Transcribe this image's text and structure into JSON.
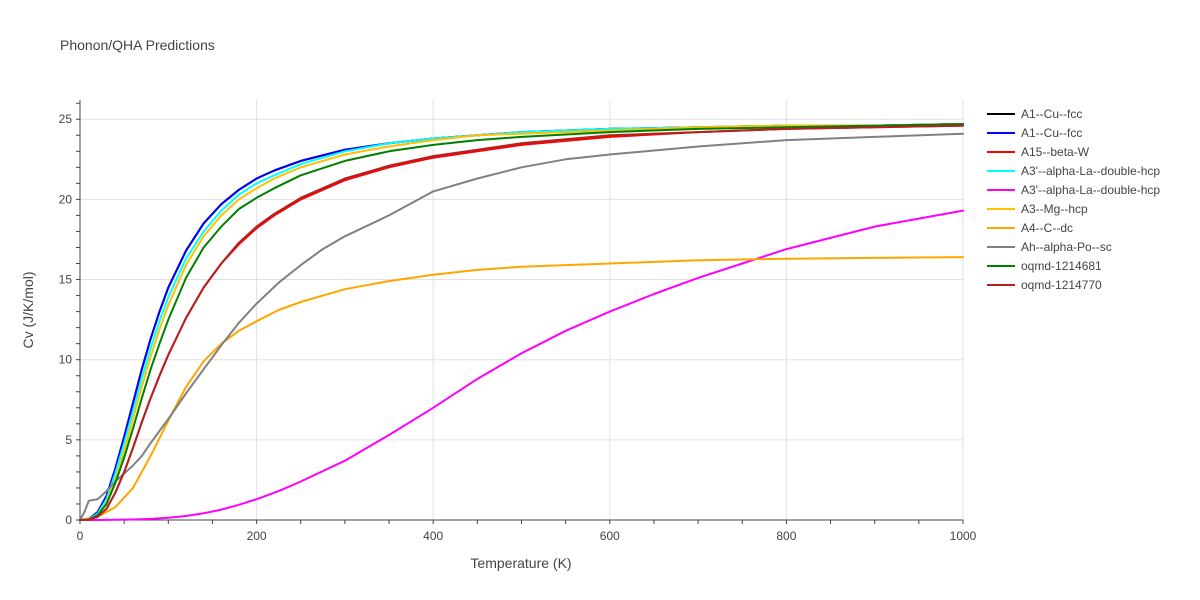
{
  "chart_data": {
    "type": "line",
    "title": "Phonon/QHA Predictions",
    "xlabel": "Temperature (K)",
    "ylabel": "Cv (J/K/mol)",
    "xlim": [
      0,
      1000
    ],
    "ylim": [
      0,
      26.2
    ],
    "xticks": [
      0,
      200,
      400,
      600,
      800,
      1000
    ],
    "yticks": [
      0,
      5,
      10,
      15,
      20,
      25
    ],
    "grid": true,
    "legend_position": "right",
    "series": [
      {
        "name": "A1--Cu--fcc",
        "color": "#000000",
        "x": [
          0,
          10,
          20,
          30,
          40,
          50,
          60,
          70,
          80,
          90,
          100,
          120,
          140,
          160,
          180,
          200,
          220,
          250,
          300,
          350,
          400,
          450,
          500,
          600,
          700,
          800,
          900,
          1000
        ],
        "y": [
          0,
          0.05,
          0.5,
          1.5,
          3.2,
          5.2,
          7.3,
          9.4,
          11.3,
          13.0,
          14.5,
          16.8,
          18.5,
          19.7,
          20.6,
          21.3,
          21.8,
          22.4,
          23.1,
          23.5,
          23.8,
          24.0,
          24.2,
          24.4,
          24.5,
          24.6,
          24.6,
          24.7
        ]
      },
      {
        "name": "A1--Cu--fcc",
        "color": "#0000ff",
        "x": [
          0,
          10,
          20,
          30,
          40,
          50,
          60,
          70,
          80,
          90,
          100,
          120,
          140,
          160,
          180,
          200,
          220,
          250,
          300,
          350,
          400,
          450,
          500,
          600,
          700,
          800,
          900,
          1000
        ],
        "y": [
          0,
          0.05,
          0.5,
          1.5,
          3.2,
          5.2,
          7.3,
          9.4,
          11.3,
          13.0,
          14.5,
          16.8,
          18.5,
          19.7,
          20.6,
          21.3,
          21.8,
          22.4,
          23.1,
          23.5,
          23.8,
          24.0,
          24.2,
          24.4,
          24.5,
          24.6,
          24.6,
          24.7
        ]
      },
      {
        "name": "A15--beta-W",
        "color": "#ff0000",
        "x": [
          0,
          10,
          20,
          30,
          40,
          50,
          60,
          70,
          80,
          90,
          100,
          120,
          140,
          160,
          180,
          200,
          220,
          250,
          300,
          350,
          400,
          450,
          500,
          600,
          700,
          800,
          900,
          1000
        ],
        "y": [
          0,
          0.02,
          0.2,
          0.7,
          1.7,
          3.0,
          4.5,
          6.1,
          7.6,
          9.0,
          10.3,
          12.6,
          14.5,
          16.0,
          17.2,
          18.2,
          19.0,
          20.0,
          21.2,
          22.0,
          22.6,
          23.0,
          23.4,
          23.9,
          24.2,
          24.4,
          24.5,
          24.6
        ]
      },
      {
        "name": "A3'--alpha-La--double-hcp",
        "color": "#00ffff",
        "x": [
          0,
          10,
          20,
          30,
          40,
          50,
          60,
          70,
          80,
          90,
          100,
          120,
          140,
          160,
          180,
          200,
          220,
          250,
          300,
          350,
          400,
          450,
          500,
          600,
          700,
          800,
          900,
          1000
        ],
        "y": [
          0,
          0.04,
          0.4,
          1.3,
          2.9,
          4.8,
          6.8,
          8.8,
          10.7,
          12.4,
          13.9,
          16.3,
          18.0,
          19.3,
          20.3,
          21.0,
          21.5,
          22.2,
          23.0,
          23.5,
          23.8,
          24.0,
          24.2,
          24.4,
          24.5,
          24.6,
          24.6,
          24.7
        ]
      },
      {
        "name": "A3'--alpha-La--double-hcp",
        "color": "#ff00ff",
        "x": [
          0,
          20,
          40,
          60,
          80,
          100,
          120,
          140,
          160,
          180,
          200,
          225,
          250,
          300,
          350,
          400,
          450,
          500,
          550,
          600,
          650,
          700,
          750,
          800,
          850,
          900,
          950,
          1000
        ],
        "y": [
          0,
          0,
          0.01,
          0.03,
          0.07,
          0.14,
          0.25,
          0.42,
          0.65,
          0.95,
          1.3,
          1.8,
          2.4,
          3.7,
          5.3,
          7.0,
          8.8,
          10.4,
          11.8,
          13.0,
          14.1,
          15.1,
          16.0,
          16.9,
          17.6,
          18.3,
          18.8,
          19.3
        ]
      },
      {
        "name": "A3--Mg--hcp",
        "color": "#ffc000",
        "x": [
          0,
          10,
          20,
          30,
          40,
          50,
          60,
          70,
          80,
          90,
          100,
          120,
          140,
          160,
          180,
          200,
          220,
          250,
          300,
          350,
          400,
          450,
          500,
          600,
          700,
          800,
          900,
          1000
        ],
        "y": [
          0,
          0.03,
          0.3,
          1.1,
          2.5,
          4.3,
          6.3,
          8.3,
          10.2,
          11.9,
          13.4,
          15.9,
          17.7,
          19.0,
          20.0,
          20.7,
          21.3,
          22.0,
          22.8,
          23.3,
          23.7,
          24.0,
          24.1,
          24.3,
          24.5,
          24.6,
          24.6,
          24.7
        ]
      },
      {
        "name": "A4--C--dc",
        "color": "#ffa500",
        "x": [
          0,
          20,
          40,
          60,
          80,
          100,
          120,
          140,
          160,
          180,
          200,
          225,
          250,
          275,
          300,
          350,
          400,
          450,
          500,
          600,
          700,
          800,
          900,
          1000
        ],
        "y": [
          0,
          0.2,
          0.8,
          2.0,
          4.0,
          6.2,
          8.3,
          9.9,
          11.0,
          11.8,
          12.4,
          13.1,
          13.6,
          14.0,
          14.4,
          14.9,
          15.3,
          15.6,
          15.8,
          16.0,
          16.2,
          16.3,
          16.35,
          16.4
        ]
      },
      {
        "name": "Ah--alpha-Po--sc",
        "color": "#808080",
        "x": [
          0,
          5,
          10,
          20,
          30,
          40,
          50,
          60,
          70,
          80,
          100,
          120,
          140,
          160,
          180,
          200,
          225,
          250,
          275,
          300,
          350,
          400,
          450,
          500,
          550,
          600,
          700,
          800,
          900,
          1000
        ],
        "y": [
          0,
          0.5,
          1.2,
          1.3,
          1.8,
          2.4,
          2.9,
          3.4,
          4.0,
          4.8,
          6.3,
          7.9,
          9.4,
          10.9,
          12.3,
          13.5,
          14.8,
          15.9,
          16.9,
          17.7,
          19.0,
          20.5,
          21.3,
          22.0,
          22.5,
          22.8,
          23.3,
          23.7,
          23.9,
          24.1
        ]
      },
      {
        "name": "oqmd-1214681",
        "color": "#008000",
        "x": [
          0,
          10,
          20,
          30,
          40,
          50,
          60,
          70,
          80,
          90,
          100,
          120,
          140,
          160,
          180,
          200,
          220,
          250,
          300,
          350,
          400,
          450,
          500,
          600,
          700,
          800,
          900,
          1000
        ],
        "y": [
          0,
          0.03,
          0.3,
          1.0,
          2.3,
          3.9,
          5.7,
          7.6,
          9.4,
          11.0,
          12.5,
          15.1,
          17.0,
          18.3,
          19.4,
          20.1,
          20.7,
          21.5,
          22.4,
          23.0,
          23.4,
          23.7,
          23.9,
          24.2,
          24.4,
          24.5,
          24.6,
          24.7
        ]
      },
      {
        "name": "oqmd-1214770",
        "color": "#b22222",
        "x": [
          0,
          10,
          20,
          30,
          40,
          50,
          60,
          70,
          80,
          90,
          100,
          120,
          140,
          160,
          180,
          200,
          220,
          250,
          300,
          350,
          400,
          450,
          500,
          600,
          700,
          800,
          900,
          1000
        ],
        "y": [
          0,
          0.02,
          0.2,
          0.7,
          1.7,
          3.0,
          4.5,
          6.1,
          7.6,
          9.0,
          10.3,
          12.6,
          14.5,
          16.0,
          17.3,
          18.3,
          19.1,
          20.1,
          21.3,
          22.1,
          22.7,
          23.1,
          23.5,
          24.0,
          24.2,
          24.4,
          24.5,
          24.6
        ]
      }
    ]
  }
}
